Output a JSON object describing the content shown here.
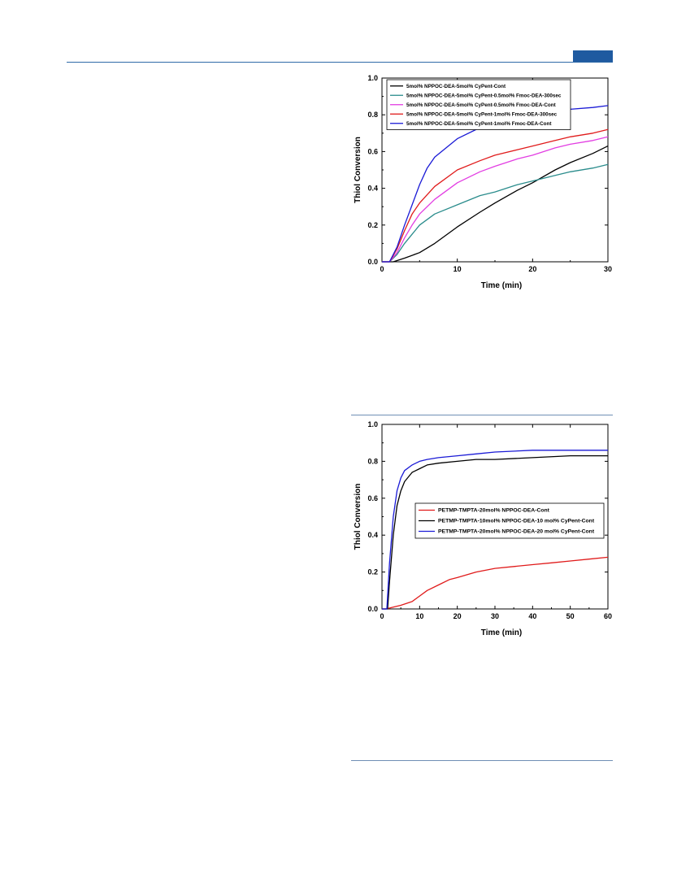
{
  "page": {
    "header_color": "#1f5aa0"
  },
  "chart_data": [
    {
      "type": "line",
      "xlabel": "Time (min)",
      "ylabel": "Thiol Conversion",
      "xlim": [
        0,
        30
      ],
      "ylim": [
        0,
        1.0
      ],
      "xticks": [
        "0",
        "10",
        "20",
        "30"
      ],
      "yticks": [
        "0.0",
        "0.2",
        "0.4",
        "0.6",
        "0.8",
        "1.0"
      ],
      "grid": false,
      "legend": "top-left",
      "series": [
        {
          "name": "5mol% NPPOC-DEA-5mol% CyPent-Cont",
          "color": "#000000",
          "x": [
            0,
            1.5,
            3,
            5,
            7,
            10,
            13,
            15,
            18,
            20,
            23,
            25,
            28,
            30
          ],
          "y": [
            0,
            0,
            0.02,
            0.05,
            0.1,
            0.19,
            0.27,
            0.32,
            0.39,
            0.43,
            0.5,
            0.54,
            0.59,
            0.63
          ]
        },
        {
          "name": "5mol% NPPOC-DEA-5mol% CyPent-0.5mol% Fmoc-DEA-300sec",
          "color": "#2a8c8c",
          "x": [
            0,
            1,
            2,
            3,
            4,
            5,
            7,
            10,
            13,
            15,
            18,
            20,
            23,
            25,
            28,
            30
          ],
          "y": [
            0,
            0,
            0.04,
            0.1,
            0.15,
            0.2,
            0.26,
            0.31,
            0.36,
            0.38,
            0.42,
            0.44,
            0.47,
            0.49,
            0.51,
            0.53
          ]
        },
        {
          "name": "5mol% NPPOC-DEA-5mol% CyPent-0.5mol% Fmoc-DEA-Cont",
          "color": "#e23de2",
          "x": [
            0,
            1,
            2,
            3,
            4,
            5,
            7,
            10,
            13,
            15,
            18,
            20,
            23,
            25,
            28,
            30
          ],
          "y": [
            0,
            0,
            0.05,
            0.13,
            0.2,
            0.26,
            0.34,
            0.43,
            0.49,
            0.52,
            0.56,
            0.58,
            0.62,
            0.64,
            0.66,
            0.68
          ]
        },
        {
          "name": "5mol% NPPOC-DEA-5mol% CyPent-1mol% Fmoc-DEA-300sec",
          "color": "#e01b1b",
          "x": [
            0,
            1,
            2,
            3,
            4,
            5,
            7,
            10,
            13,
            15,
            18,
            20,
            23,
            25,
            28,
            30
          ],
          "y": [
            0,
            0,
            0.07,
            0.17,
            0.26,
            0.32,
            0.41,
            0.5,
            0.55,
            0.58,
            0.61,
            0.63,
            0.66,
            0.68,
            0.7,
            0.72
          ]
        },
        {
          "name": "5mol% NPPOC-DEA-5mol% CyPent-1mol% Fmoc-DEA-Cont",
          "color": "#1a1ad6",
          "x": [
            0,
            1,
            2,
            3,
            4,
            5,
            6,
            7,
            10,
            13,
            15,
            18,
            20,
            23,
            25,
            28,
            30
          ],
          "y": [
            0,
            0,
            0.08,
            0.2,
            0.31,
            0.42,
            0.51,
            0.57,
            0.67,
            0.73,
            0.76,
            0.79,
            0.8,
            0.82,
            0.83,
            0.84,
            0.85
          ]
        }
      ]
    },
    {
      "type": "line",
      "xlabel": "Time (min)",
      "ylabel": "Thiol Conversion",
      "xlim": [
        0,
        60
      ],
      "ylim": [
        0,
        1.0
      ],
      "xticks": [
        "0",
        "10",
        "20",
        "30",
        "40",
        "50",
        "60"
      ],
      "yticks": [
        "0.0",
        "0.2",
        "0.4",
        "0.6",
        "0.8",
        "1.0"
      ],
      "grid": false,
      "legend": "center-right",
      "series": [
        {
          "name": "PETMP-TMPTA-20mol% NPPOC-DEA-Cont",
          "color": "#e01b1b",
          "x": [
            0,
            1,
            3,
            5,
            8,
            10,
            12,
            15,
            18,
            20,
            25,
            30,
            35,
            40,
            45,
            50,
            55,
            60
          ],
          "y": [
            0,
            0,
            0.01,
            0.02,
            0.04,
            0.07,
            0.1,
            0.13,
            0.16,
            0.17,
            0.2,
            0.22,
            0.23,
            0.24,
            0.25,
            0.26,
            0.27,
            0.28
          ]
        },
        {
          "name": "PETMP-TMPTA-10mol% NPPOC-DEA-10 mol% CyPent-Cont",
          "color": "#000000",
          "x": [
            0,
            1.5,
            2,
            3,
            4,
            5,
            6,
            8,
            10,
            12,
            15,
            20,
            25,
            30,
            40,
            50,
            60
          ],
          "y": [
            0,
            0,
            0.15,
            0.4,
            0.56,
            0.64,
            0.69,
            0.74,
            0.76,
            0.78,
            0.79,
            0.8,
            0.81,
            0.81,
            0.82,
            0.83,
            0.83
          ]
        },
        {
          "name": "PETMP-TMPTA-20mol% NPPOC-DEA-20 mol% CyPent-Cont",
          "color": "#1a1ad6",
          "x": [
            0,
            1.3,
            2,
            3,
            4,
            5,
            6,
            8,
            10,
            12,
            15,
            20,
            25,
            30,
            40,
            50,
            60
          ],
          "y": [
            0,
            0,
            0.25,
            0.5,
            0.64,
            0.71,
            0.75,
            0.78,
            0.8,
            0.81,
            0.82,
            0.83,
            0.84,
            0.85,
            0.86,
            0.86,
            0.86
          ]
        }
      ]
    }
  ]
}
